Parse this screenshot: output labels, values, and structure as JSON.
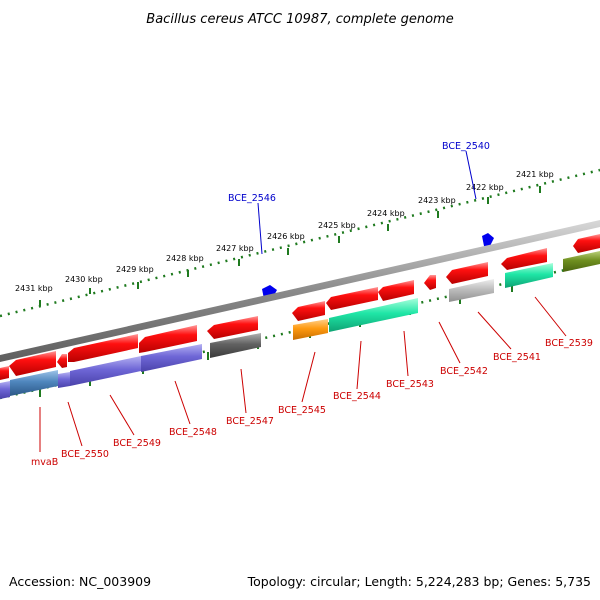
{
  "title": "Bacillus cereus ATCC 10987, complete genome",
  "footer": {
    "accession": "Accession: NC_003909",
    "topology": "Topology: circular; Length: 5,224,283 bp; Genes: 5,735"
  },
  "colors": {
    "gene_red": "#ee0000",
    "label_red": "#cc0000",
    "label_blue": "#0000cc",
    "backbone": "#8a8a8a",
    "tick_green": "#1f7a1f",
    "marker_blue": "#0000ee"
  },
  "kbp_labels": [
    "2431 kbp",
    "2430 kbp",
    "2429 kbp",
    "2428 kbp",
    "2427 kbp",
    "2426 kbp",
    "2425 kbp",
    "2424 kbp",
    "2423 kbp",
    "2422 kbp",
    "2421 kbp"
  ],
  "gene_labels": {
    "mvaB": "mvaB",
    "BCE_2550": "BCE_2550",
    "BCE_2549": "BCE_2549",
    "BCE_2548": "BCE_2548",
    "BCE_2547": "BCE_2547",
    "BCE_2546": "BCE_2546",
    "BCE_2545": "BCE_2545",
    "BCE_2544": "BCE_2544",
    "BCE_2543": "BCE_2543",
    "BCE_2542": "BCE_2542",
    "BCE_2541": "BCE_2541",
    "BCE_2540": "BCE_2540",
    "BCE_2539": "BCE_2539"
  }
}
